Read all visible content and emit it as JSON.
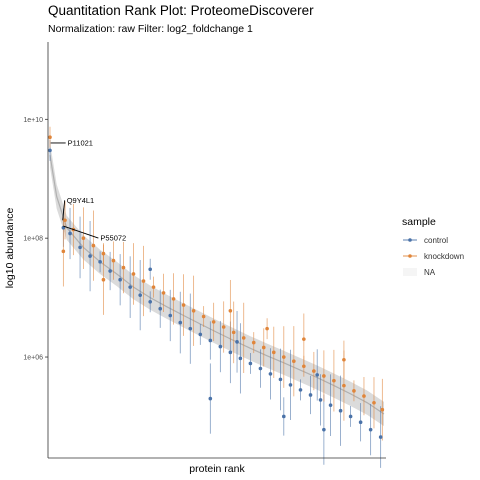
{
  "chart_data": {
    "type": "scatter",
    "title": "Quantitation Rank Plot: ProteomeDiscoverer",
    "subtitle": "Normalization: raw Filter: log2_foldchange 1",
    "xlabel": "protein rank",
    "ylabel": "log10 abundance",
    "y_scale": "log10",
    "ylim": [
      20000,
      200000000000
    ],
    "y_ticks": [
      {
        "value": 1000000,
        "label": "1e+06"
      },
      {
        "value": 100000000,
        "label": "1e+08"
      },
      {
        "value": 10000000000,
        "label": "1e+10"
      }
    ],
    "x_range": [
      0,
      1000
    ],
    "grid": false,
    "legend": {
      "title": "sample",
      "placement": "right",
      "entries": [
        {
          "label": "control",
          "color": "#4a72a8"
        },
        {
          "label": "knockdown",
          "color": "#e0853a"
        },
        {
          "label": "NA",
          "color": "#bdbdbd"
        }
      ]
    },
    "annotations": [
      {
        "label": "P11021",
        "x": 2,
        "y": 4000000000
      },
      {
        "label": "Q9Y4L1",
        "x": 38,
        "y": 200000000
      },
      {
        "label": "P55072",
        "x": 40,
        "y": 160000000
      }
    ],
    "series": [
      {
        "name": "control",
        "color": "#4a72a8",
        "points": [
          [
            0,
            3000000000
          ],
          [
            40,
            150000000
          ],
          [
            60,
            120000000
          ],
          [
            90,
            70000000
          ],
          [
            120,
            50000000
          ],
          [
            150,
            40000000
          ],
          [
            180,
            28000000
          ],
          [
            210,
            20000000
          ],
          [
            240,
            15000000
          ],
          [
            270,
            11000000
          ],
          [
            300,
            8500000
          ],
          [
            330,
            6500000
          ],
          [
            360,
            5000000
          ],
          [
            390,
            3800000
          ],
          [
            420,
            3000000
          ],
          [
            450,
            2400000
          ],
          [
            480,
            1900000
          ],
          [
            510,
            1500000
          ],
          [
            540,
            1200000
          ],
          [
            570,
            950000
          ],
          [
            600,
            780000
          ],
          [
            630,
            640000
          ],
          [
            660,
            520000
          ],
          [
            690,
            420000
          ],
          [
            720,
            340000
          ],
          [
            750,
            280000
          ],
          [
            780,
            230000
          ],
          [
            810,
            190000
          ],
          [
            840,
            155000
          ],
          [
            870,
            125000
          ],
          [
            900,
            100000
          ],
          [
            930,
            80000
          ],
          [
            960,
            60000
          ],
          [
            990,
            45000
          ],
          [
            480,
            200000
          ],
          [
            300,
            30000000
          ],
          [
            700,
            100000
          ],
          [
            800,
            500000
          ],
          [
            560,
            1800000
          ],
          [
            820,
            60000
          ]
        ]
      },
      {
        "name": "knockdown",
        "color": "#e0853a",
        "points": [
          [
            0,
            5000000000
          ],
          [
            45,
            200000000
          ],
          [
            70,
            140000000
          ],
          [
            100,
            100000000
          ],
          [
            130,
            75000000
          ],
          [
            160,
            55000000
          ],
          [
            190,
            42000000
          ],
          [
            220,
            32000000
          ],
          [
            250,
            25000000
          ],
          [
            280,
            19000000
          ],
          [
            310,
            15000000
          ],
          [
            340,
            12000000
          ],
          [
            370,
            9500000
          ],
          [
            400,
            7500000
          ],
          [
            430,
            6000000
          ],
          [
            460,
            4800000
          ],
          [
            490,
            3900000
          ],
          [
            520,
            3200000
          ],
          [
            550,
            2600000
          ],
          [
            580,
            2100000
          ],
          [
            610,
            1750000
          ],
          [
            640,
            1450000
          ],
          [
            670,
            1200000
          ],
          [
            700,
            1000000
          ],
          [
            730,
            850000
          ],
          [
            760,
            700000
          ],
          [
            790,
            580000
          ],
          [
            820,
            480000
          ],
          [
            850,
            400000
          ],
          [
            880,
            330000
          ],
          [
            910,
            270000
          ],
          [
            940,
            220000
          ],
          [
            970,
            170000
          ],
          [
            995,
            130000
          ],
          [
            160,
            20000000
          ],
          [
            650,
            3000000
          ],
          [
            880,
            900000
          ],
          [
            760,
            2000000
          ],
          [
            540,
            6000000
          ],
          [
            40,
            60000000
          ]
        ]
      },
      {
        "name": "NA",
        "color": "#bdbdbd",
        "points": [
          [
            0,
            2500000000
          ],
          [
            20,
            500000000
          ],
          [
            50,
            150000000
          ],
          [
            100,
            70000000
          ],
          [
            150,
            40000000
          ],
          [
            200,
            25000000
          ],
          [
            250,
            15000000
          ],
          [
            300,
            10000000
          ],
          [
            350,
            7000000
          ],
          [
            400,
            5000000
          ],
          [
            450,
            3600000
          ],
          [
            500,
            2600000
          ],
          [
            550,
            1900000
          ],
          [
            600,
            1400000
          ],
          [
            650,
            1050000
          ],
          [
            700,
            800000
          ],
          [
            750,
            600000
          ],
          [
            800,
            450000
          ],
          [
            850,
            330000
          ],
          [
            900,
            240000
          ],
          [
            950,
            170000
          ],
          [
            1000,
            110000
          ]
        ]
      }
    ]
  }
}
